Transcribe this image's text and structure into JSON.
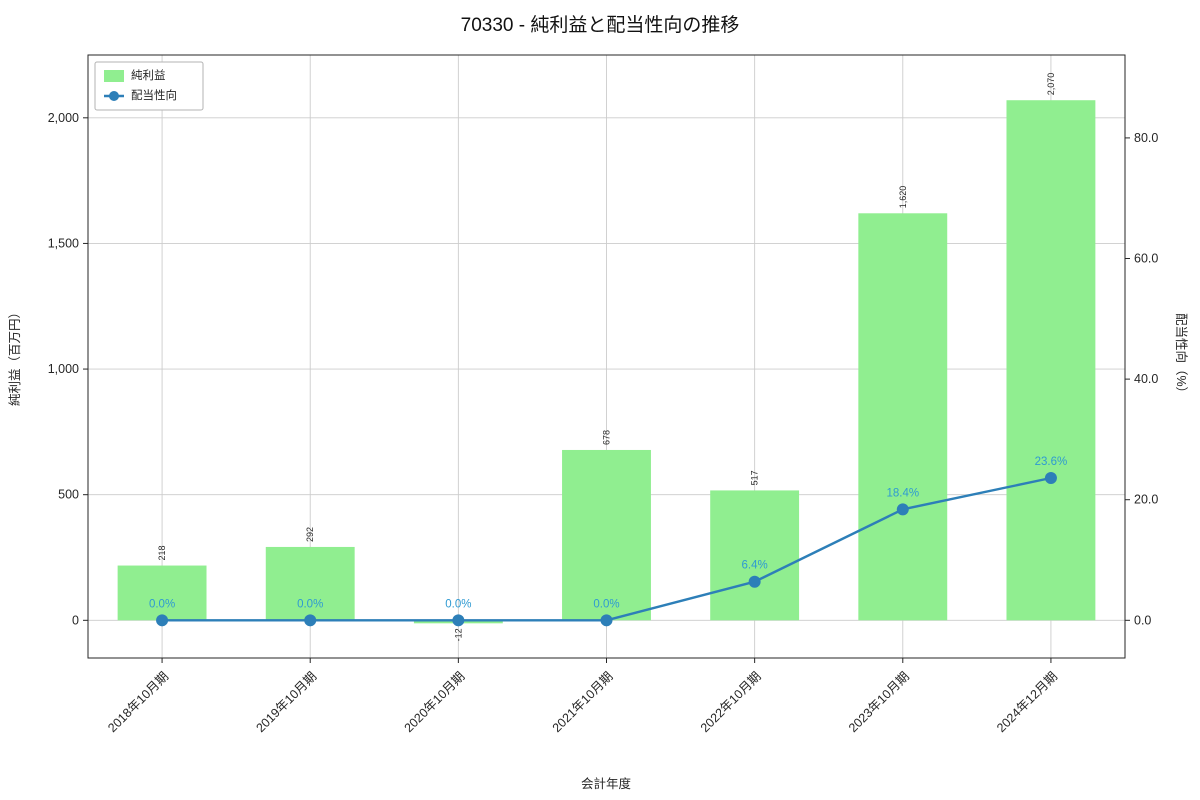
{
  "chart_data": {
    "type": "bar",
    "title": "70330 - 純利益と配当性向の推移",
    "xlabel": "会計年度",
    "ylabel_left": "純利益（百万円）",
    "ylabel_right": "配当性向（%）",
    "categories": [
      "2018年10月期",
      "2019年10月期",
      "2020年10月期",
      "2021年10月期",
      "2022年10月期",
      "2023年10月期",
      "2024年12月期"
    ],
    "series": [
      {
        "name": "純利益",
        "kind": "bar",
        "axis": "left",
        "color": "#90ee90",
        "values": [
          218,
          292,
          -12,
          678,
          517,
          1620,
          2070
        ],
        "value_labels": [
          "218",
          "292",
          "-12",
          "678",
          "517",
          "1,620",
          "2,070"
        ]
      },
      {
        "name": "配当性向",
        "kind": "line",
        "axis": "right",
        "color": "#2d7fb8",
        "label_color": "#2f9ad2",
        "values": [
          0.0,
          0.0,
          0.0,
          0.0,
          6.4,
          18.4,
          23.6
        ],
        "value_labels": [
          "0.0%",
          "0.0%",
          "0.0%",
          "0.0%",
          "6.4%",
          "18.4%",
          "23.6%"
        ]
      }
    ],
    "left_axis": {
      "ticks": [
        0,
        500,
        1000,
        1500,
        2000
      ],
      "tick_labels": [
        "0",
        "500",
        "1,000",
        "1,500",
        "2,000"
      ],
      "lim": [
        -150,
        2250
      ]
    },
    "right_axis": {
      "ticks": [
        0,
        20,
        40,
        60,
        80
      ],
      "tick_labels": [
        "0.0",
        "20.0",
        "40.0",
        "60.0",
        "80.0"
      ],
      "lim": [
        -6.25,
        93.75
      ]
    },
    "grid": true,
    "legend": {
      "position": "upper left",
      "entries": [
        "純利益",
        "配当性向"
      ]
    },
    "colors": {
      "grid": "#cccccc",
      "axis": "#262626",
      "background": "#ffffff"
    }
  }
}
